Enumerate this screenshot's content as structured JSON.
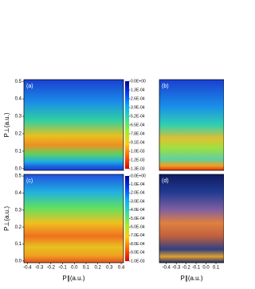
{
  "chart_data": [
    {
      "type": "heatmap",
      "label": "(a)",
      "ylabel": "P⊥(a.u.)",
      "ylim": [
        -0.01,
        0.51
      ],
      "yticks": [
        {
          "value": 0,
          "label": "0.0"
        },
        0.1,
        0.2,
        0.3,
        0.4,
        0.5
      ],
      "colorbar": {
        "zlim": [
          0,
          0.0013
        ],
        "colors": [
          "#000090",
          "#0040ff",
          "#00b0ff",
          "#30e0a0",
          "#a0f020",
          "#ffd000",
          "#ff6000",
          "#e00000"
        ],
        "ticks": [
          {
            "value": 0,
            "label": "0.0E+00"
          },
          {
            "value": 0.00013,
            "label": "1.3E-04"
          },
          {
            "value": 0.00026,
            "label": "2.6E-04"
          },
          {
            "value": 0.00039,
            "label": "3.9E-04"
          },
          {
            "value": 0.00052,
            "label": "5.2E-04"
          },
          {
            "value": 0.00065,
            "label": "6.5E-04"
          },
          {
            "value": 0.00078,
            "label": "7.8E-04"
          },
          {
            "value": 0.00091,
            "label": "9.1E-04"
          },
          {
            "value": 0.00104,
            "label": "1.0E-03"
          },
          {
            "value": 0.00117,
            "label": "1.2E-03"
          },
          {
            "value": 0.0013,
            "label": "1.3E-03"
          }
        ]
      }
    },
    {
      "type": "heatmap",
      "label": "(b)"
    },
    {
      "type": "heatmap",
      "label": "(c)",
      "ylabel": "P⊥(a.u.)",
      "xlabel": "P∥(a.u.)",
      "xlim": [
        -0.43,
        0.42
      ],
      "xticks": [
        -0.4,
        -0.3,
        -0.2,
        -0.1,
        {
          "value": 0,
          "label": "0.0"
        },
        0.1,
        0.2,
        0.3,
        0.4
      ],
      "ylim": [
        -0.01,
        0.51
      ],
      "yticks": [
        {
          "value": 0,
          "label": "0.0"
        },
        0.1,
        0.2,
        0.3,
        0.4,
        0.5
      ],
      "colorbar": {
        "zlim": [
          0,
          0.001
        ],
        "colors": [
          "#000090",
          "#0040ff",
          "#00b0ff",
          "#30e0a0",
          "#a0f020",
          "#ffd000",
          "#ff6000",
          "#e00000"
        ],
        "ticks": [
          {
            "value": 0,
            "label": "0.0E+00"
          },
          {
            "value": 0.0001,
            "label": "1.0E-04"
          },
          {
            "value": 0.0002,
            "label": "2.0E-04"
          },
          {
            "value": 0.0003,
            "label": "3.0E-04"
          },
          {
            "value": 0.0004,
            "label": "4.0E-04"
          },
          {
            "value": 0.0005,
            "label": "5.0E-04"
          },
          {
            "value": 0.0006,
            "label": "6.0E-04"
          },
          {
            "value": 0.0007,
            "label": "7.0E-04"
          },
          {
            "value": 0.0008,
            "label": "8.0E-04"
          },
          {
            "value": 0.0009,
            "label": "9.0E-04"
          },
          {
            "value": 0.001,
            "label": "1.0E-03"
          }
        ]
      }
    },
    {
      "type": "heatmap",
      "label": "(d)",
      "xlabel": "P∥(a.u.)",
      "xlim": [
        -0.47,
        0.18
      ],
      "xticks": [
        -0.4,
        -0.3,
        -0.2,
        -0.1,
        {
          "value": 0,
          "label": "0.0"
        },
        0.1
      ]
    }
  ]
}
